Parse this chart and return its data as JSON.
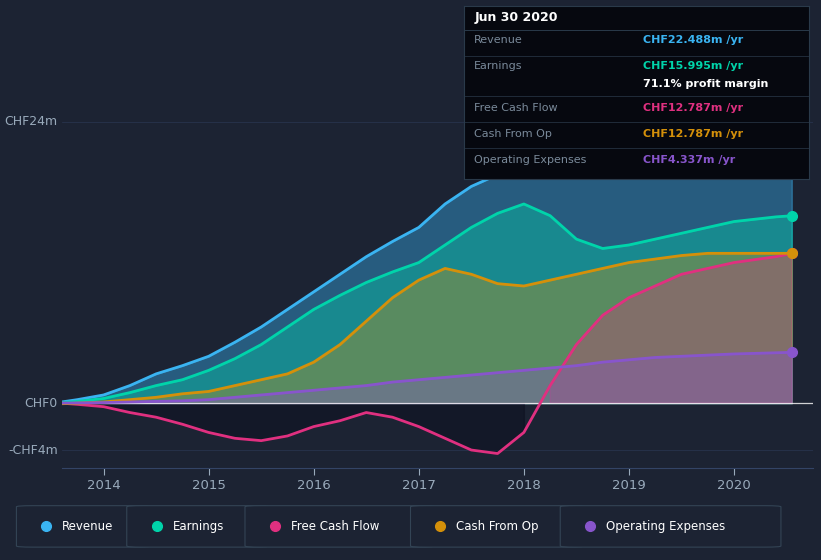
{
  "bg_color": "#1c2333",
  "plot_bg_color": "#1c2333",
  "ylabel_top": "CHF24m",
  "ylabel_zero": "CHF0",
  "ylabel_neg": "-CHF4m",
  "x_ticks": [
    2014,
    2015,
    2016,
    2017,
    2018,
    2019,
    2020
  ],
  "colors": {
    "revenue": "#3ab4f2",
    "earnings": "#00d4aa",
    "free_cash_flow": "#e03080",
    "cash_from_op": "#d4900a",
    "operating_expenses": "#8855cc"
  },
  "tooltip": {
    "date": "Jun 30 2020",
    "revenue_label": "Revenue",
    "revenue_val": "CHF22.488m /yr",
    "earnings_label": "Earnings",
    "earnings_val": "CHF15.995m /yr",
    "profit_margin": "71.1% profit margin",
    "fcf_label": "Free Cash Flow",
    "fcf_val": "CHF12.787m /yr",
    "cfo_label": "Cash From Op",
    "cfo_val": "CHF12.787m /yr",
    "opex_label": "Operating Expenses",
    "opex_val": "CHF4.337m /yr"
  },
  "x": [
    2013.6,
    2013.75,
    2014.0,
    2014.25,
    2014.5,
    2014.75,
    2015.0,
    2015.25,
    2015.5,
    2015.75,
    2016.0,
    2016.25,
    2016.5,
    2016.75,
    2017.0,
    2017.25,
    2017.5,
    2017.75,
    2018.0,
    2018.25,
    2018.5,
    2018.75,
    2019.0,
    2019.25,
    2019.5,
    2019.75,
    2020.0,
    2020.4,
    2020.55
  ],
  "revenue": [
    0.1,
    0.3,
    0.7,
    1.5,
    2.5,
    3.2,
    4.0,
    5.2,
    6.5,
    8.0,
    9.5,
    11.0,
    12.5,
    13.8,
    15.0,
    17.0,
    18.5,
    19.5,
    20.8,
    21.0,
    20.0,
    19.8,
    20.2,
    20.5,
    21.0,
    21.5,
    22.0,
    22.4,
    22.488
  ],
  "earnings": [
    0.05,
    0.15,
    0.4,
    0.9,
    1.5,
    2.0,
    2.8,
    3.8,
    5.0,
    6.5,
    8.0,
    9.2,
    10.3,
    11.2,
    12.0,
    13.5,
    15.0,
    16.2,
    17.0,
    16.0,
    14.0,
    13.2,
    13.5,
    14.0,
    14.5,
    15.0,
    15.5,
    15.9,
    15.995
  ],
  "free_cash_flow": [
    0.0,
    -0.1,
    -0.3,
    -0.8,
    -1.2,
    -1.8,
    -2.5,
    -3.0,
    -3.2,
    -2.8,
    -2.0,
    -1.5,
    -0.8,
    -1.2,
    -2.0,
    -3.0,
    -4.0,
    -4.3,
    -2.5,
    1.5,
    5.0,
    7.5,
    9.0,
    10.0,
    11.0,
    11.5,
    12.0,
    12.5,
    12.787
  ],
  "cash_from_op": [
    -0.05,
    0.0,
    0.1,
    0.3,
    0.5,
    0.8,
    1.0,
    1.5,
    2.0,
    2.5,
    3.5,
    5.0,
    7.0,
    9.0,
    10.5,
    11.5,
    11.0,
    10.2,
    10.0,
    10.5,
    11.0,
    11.5,
    12.0,
    12.3,
    12.6,
    12.787,
    12.787,
    12.787,
    12.787
  ],
  "operating_expenses": [
    0.01,
    0.02,
    0.05,
    0.1,
    0.15,
    0.2,
    0.3,
    0.5,
    0.7,
    0.9,
    1.1,
    1.3,
    1.5,
    1.8,
    2.0,
    2.2,
    2.4,
    2.6,
    2.8,
    3.0,
    3.2,
    3.5,
    3.7,
    3.9,
    4.0,
    4.1,
    4.2,
    4.3,
    4.337
  ],
  "ylim": [
    -5.5,
    27
  ],
  "xlim": [
    2013.6,
    2020.75
  ],
  "y_zero": 0,
  "y_top": 24,
  "y_neg": -4
}
